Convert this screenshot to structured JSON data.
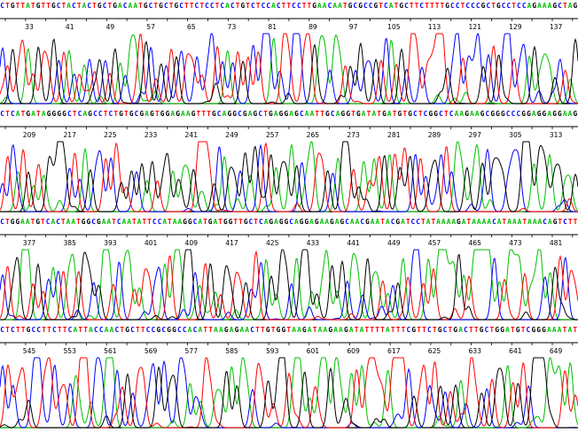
{
  "colors": {
    "A": "#00c000",
    "C": "#0000ff",
    "G": "#000000",
    "T": "#ff0000",
    "N": "#888888"
  },
  "rows": [
    {
      "sequence": "CTGTTATGTTGCTACTACTGCTGACAATGCTGCTGCTTCTCCTCACTGTCTCCACTTCCTTGAACAATGCGCCGTCATGCTTCTTTTGCCTCCCGCTGCCTCCAGAAAGCTAG",
      "positions": [
        "33",
        "41",
        "49",
        "57",
        "65",
        "73",
        "81",
        "89",
        "97",
        "105",
        "113",
        "121",
        "129",
        "137"
      ]
    },
    {
      "sequence": "CTCATGATAGGGGCTCAGCCTCTGTGCGAGTGGAGAAGTTTGCAGGCGAGCTGAGGAGCAATTGCAGGTGATATGATGTGCTCGGCTCAAGAAGCGGGCCCGGAGGAGGAAG",
      "positions": [
        "209",
        "217",
        "225",
        "233",
        "241",
        "249",
        "257",
        "265",
        "273",
        "281",
        "289",
        "297",
        "305",
        "313"
      ]
    },
    {
      "sequence": "CTGGAATGTCACTAATGGCGAATCAATATTCCATAAGGCATGATGGTTGCTCAGAGGCAGGAGAAGAGCAACGAATACGATCCTATAAAAGATAAAACATAAATAAACAGTCTT",
      "positions": [
        "377",
        "385",
        "393",
        "401",
        "409",
        "417",
        "425",
        "433",
        "441",
        "449",
        "457",
        "465",
        "473",
        "481"
      ]
    },
    {
      "sequence": "CTCTTGCCTTCTTCATTACCAACTGCTTCCGCGGCCACATTAAGAGAACTTGTGGTAAGATAAGAAGATATTTTATTTCGTTCTGCTGACTTGCTGGATGTCGGGAAATAT",
      "positions": [
        "545",
        "553",
        "561",
        "569",
        "577",
        "585",
        "593",
        "601",
        "609",
        "617",
        "625",
        "633",
        "641",
        "649"
      ]
    }
  ]
}
